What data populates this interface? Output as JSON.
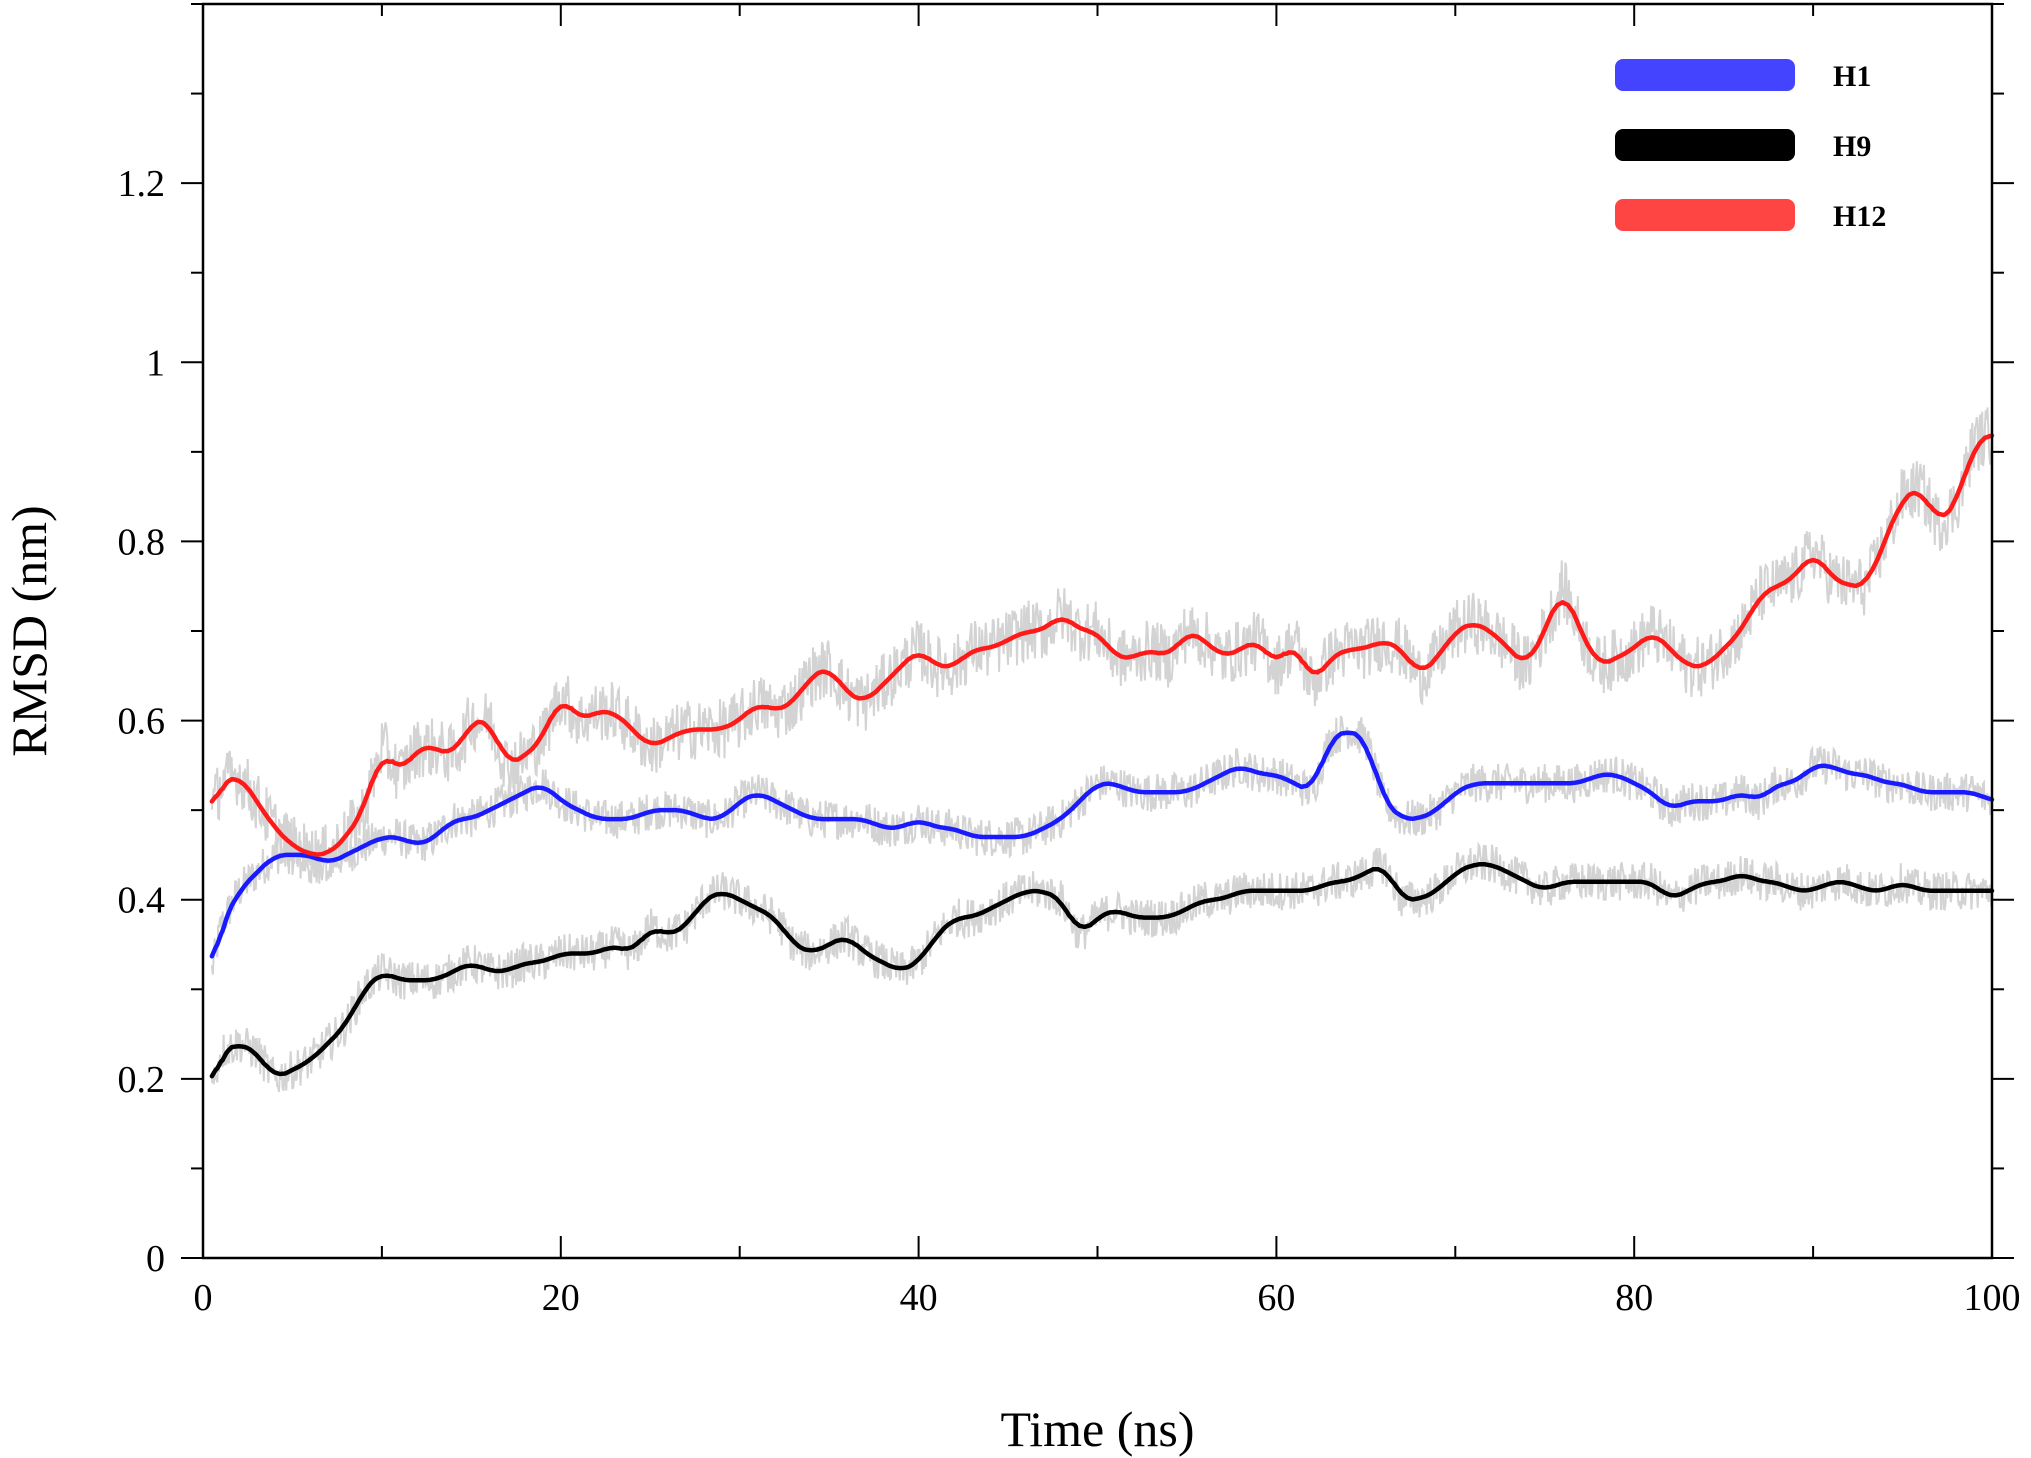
{
  "chart_data": {
    "type": "line",
    "xlabel": "Time (ns)",
    "ylabel": "RMSD (nm)",
    "xlim": [
      0,
      100
    ],
    "ylim": [
      0,
      1.4
    ],
    "x_ticks": [
      0,
      20,
      40,
      60,
      80,
      100
    ],
    "x_tick_labels": [
      "0",
      "20",
      "40",
      "60",
      "80",
      "100"
    ],
    "y_ticks": [
      0,
      0.2,
      0.4,
      0.6,
      0.8,
      1,
      1.2
    ],
    "y_tick_labels": [
      "0",
      "0.2",
      "0.4",
      "0.6",
      "0.8",
      "1",
      "1.2"
    ],
    "grid": false,
    "legend_position": "top-right",
    "raw_trace_color": "#d3d3d3",
    "series": [
      {
        "name": "H1",
        "color": "#1a1aff",
        "legend_color": "#4444ff",
        "x": [
          0.5,
          1,
          2,
          3,
          4,
          5,
          6,
          7,
          8,
          9,
          10,
          11,
          12,
          13,
          14,
          15,
          16,
          17,
          18,
          19,
          20,
          21,
          22,
          23,
          24,
          25,
          26,
          27,
          28,
          29,
          30,
          31,
          32,
          33,
          34,
          35,
          36,
          37,
          38,
          39,
          40,
          41,
          42,
          43,
          44,
          45,
          46,
          47,
          48,
          49,
          50,
          51,
          52,
          53,
          54,
          55,
          56,
          57,
          58,
          59,
          60,
          61,
          62,
          63,
          64,
          65,
          66,
          67,
          68,
          69,
          70,
          71,
          72,
          73,
          74,
          75,
          76,
          77,
          78,
          79,
          80,
          81,
          82,
          83,
          84,
          85,
          86,
          87,
          88,
          89,
          90,
          91,
          92,
          93,
          94,
          95,
          96,
          97,
          98,
          99,
          100
        ],
        "y": [
          0.32,
          0.37,
          0.41,
          0.43,
          0.45,
          0.45,
          0.45,
          0.44,
          0.45,
          0.46,
          0.47,
          0.47,
          0.46,
          0.47,
          0.49,
          0.49,
          0.5,
          0.51,
          0.52,
          0.53,
          0.51,
          0.5,
          0.49,
          0.49,
          0.49,
          0.5,
          0.5,
          0.5,
          0.49,
          0.49,
          0.51,
          0.52,
          0.51,
          0.5,
          0.49,
          0.49,
          0.49,
          0.49,
          0.48,
          0.48,
          0.49,
          0.48,
          0.48,
          0.47,
          0.47,
          0.47,
          0.47,
          0.48,
          0.49,
          0.51,
          0.53,
          0.53,
          0.52,
          0.52,
          0.52,
          0.52,
          0.53,
          0.54,
          0.55,
          0.54,
          0.54,
          0.53,
          0.52,
          0.58,
          0.59,
          0.58,
          0.51,
          0.49,
          0.49,
          0.5,
          0.52,
          0.53,
          0.53,
          0.53,
          0.53,
          0.53,
          0.53,
          0.53,
          0.54,
          0.54,
          0.53,
          0.52,
          0.5,
          0.51,
          0.51,
          0.51,
          0.52,
          0.51,
          0.53,
          0.53,
          0.55,
          0.55,
          0.54,
          0.54,
          0.53,
          0.53,
          0.52,
          0.52,
          0.52,
          0.52,
          0.51
        ]
      },
      {
        "name": "H9",
        "color": "#000000",
        "legend_color": "#000000",
        "x": [
          0.5,
          1,
          2,
          3,
          4,
          5,
          6,
          7,
          8,
          9,
          10,
          11,
          12,
          13,
          14,
          15,
          16,
          17,
          18,
          19,
          20,
          21,
          22,
          23,
          24,
          25,
          26,
          27,
          28,
          29,
          30,
          31,
          32,
          33,
          34,
          35,
          36,
          37,
          38,
          39,
          40,
          41,
          42,
          43,
          44,
          45,
          46,
          47,
          48,
          49,
          50,
          51,
          52,
          53,
          54,
          55,
          56,
          57,
          58,
          59,
          60,
          61,
          62,
          63,
          64,
          65,
          66,
          67,
          68,
          69,
          70,
          71,
          72,
          73,
          74,
          75,
          76,
          77,
          78,
          79,
          80,
          81,
          82,
          83,
          84,
          85,
          86,
          87,
          88,
          89,
          90,
          91,
          92,
          93,
          94,
          95,
          96,
          97,
          98,
          99,
          100
        ],
        "y": [
          0.19,
          0.23,
          0.24,
          0.23,
          0.2,
          0.21,
          0.22,
          0.24,
          0.26,
          0.3,
          0.32,
          0.31,
          0.31,
          0.31,
          0.32,
          0.33,
          0.32,
          0.32,
          0.33,
          0.33,
          0.34,
          0.34,
          0.34,
          0.35,
          0.34,
          0.37,
          0.36,
          0.37,
          0.4,
          0.41,
          0.4,
          0.39,
          0.38,
          0.35,
          0.34,
          0.35,
          0.36,
          0.34,
          0.33,
          0.32,
          0.33,
          0.36,
          0.38,
          0.38,
          0.39,
          0.4,
          0.41,
          0.41,
          0.4,
          0.36,
          0.38,
          0.39,
          0.38,
          0.38,
          0.38,
          0.39,
          0.4,
          0.4,
          0.41,
          0.41,
          0.41,
          0.41,
          0.41,
          0.42,
          0.42,
          0.43,
          0.44,
          0.4,
          0.4,
          0.41,
          0.43,
          0.44,
          0.44,
          0.43,
          0.42,
          0.41,
          0.42,
          0.42,
          0.42,
          0.42,
          0.42,
          0.42,
          0.4,
          0.41,
          0.42,
          0.42,
          0.43,
          0.42,
          0.42,
          0.41,
          0.41,
          0.42,
          0.42,
          0.41,
          0.41,
          0.42,
          0.41,
          0.41,
          0.41,
          0.41,
          0.41
        ]
      },
      {
        "name": "H12",
        "color": "#ff1a1a",
        "legend_color": "#ff4444",
        "x": [
          0.5,
          1,
          2,
          3,
          4,
          5,
          6,
          7,
          8,
          9,
          10,
          11,
          12,
          13,
          14,
          15,
          16,
          17,
          18,
          19,
          20,
          21,
          22,
          23,
          24,
          25,
          26,
          27,
          28,
          29,
          30,
          31,
          32,
          33,
          34,
          35,
          36,
          37,
          38,
          39,
          40,
          41,
          42,
          43,
          44,
          45,
          46,
          47,
          48,
          49,
          50,
          51,
          52,
          53,
          54,
          55,
          56,
          57,
          58,
          59,
          60,
          61,
          62,
          63,
          64,
          65,
          66,
          67,
          68,
          69,
          70,
          71,
          72,
          73,
          74,
          75,
          76,
          77,
          78,
          79,
          80,
          81,
          82,
          83,
          84,
          85,
          86,
          87,
          88,
          89,
          90,
          91,
          92,
          93,
          94,
          95,
          96,
          97,
          98,
          99,
          100
        ],
        "y": [
          0.5,
          0.53,
          0.54,
          0.51,
          0.48,
          0.46,
          0.45,
          0.45,
          0.47,
          0.5,
          0.57,
          0.54,
          0.57,
          0.57,
          0.56,
          0.6,
          0.6,
          0.55,
          0.56,
          0.58,
          0.63,
          0.6,
          0.61,
          0.61,
          0.59,
          0.57,
          0.58,
          0.59,
          0.59,
          0.59,
          0.6,
          0.62,
          0.61,
          0.62,
          0.65,
          0.66,
          0.63,
          0.62,
          0.64,
          0.66,
          0.68,
          0.66,
          0.66,
          0.68,
          0.68,
          0.69,
          0.7,
          0.7,
          0.72,
          0.7,
          0.7,
          0.67,
          0.67,
          0.68,
          0.67,
          0.7,
          0.69,
          0.67,
          0.68,
          0.69,
          0.66,
          0.69,
          0.64,
          0.67,
          0.68,
          0.68,
          0.69,
          0.68,
          0.65,
          0.67,
          0.7,
          0.71,
          0.7,
          0.68,
          0.66,
          0.7,
          0.75,
          0.7,
          0.66,
          0.67,
          0.68,
          0.7,
          0.68,
          0.66,
          0.66,
          0.68,
          0.7,
          0.74,
          0.75,
          0.76,
          0.79,
          0.76,
          0.75,
          0.75,
          0.8,
          0.85,
          0.86,
          0.82,
          0.84,
          0.91,
          0.92
        ]
      }
    ]
  }
}
